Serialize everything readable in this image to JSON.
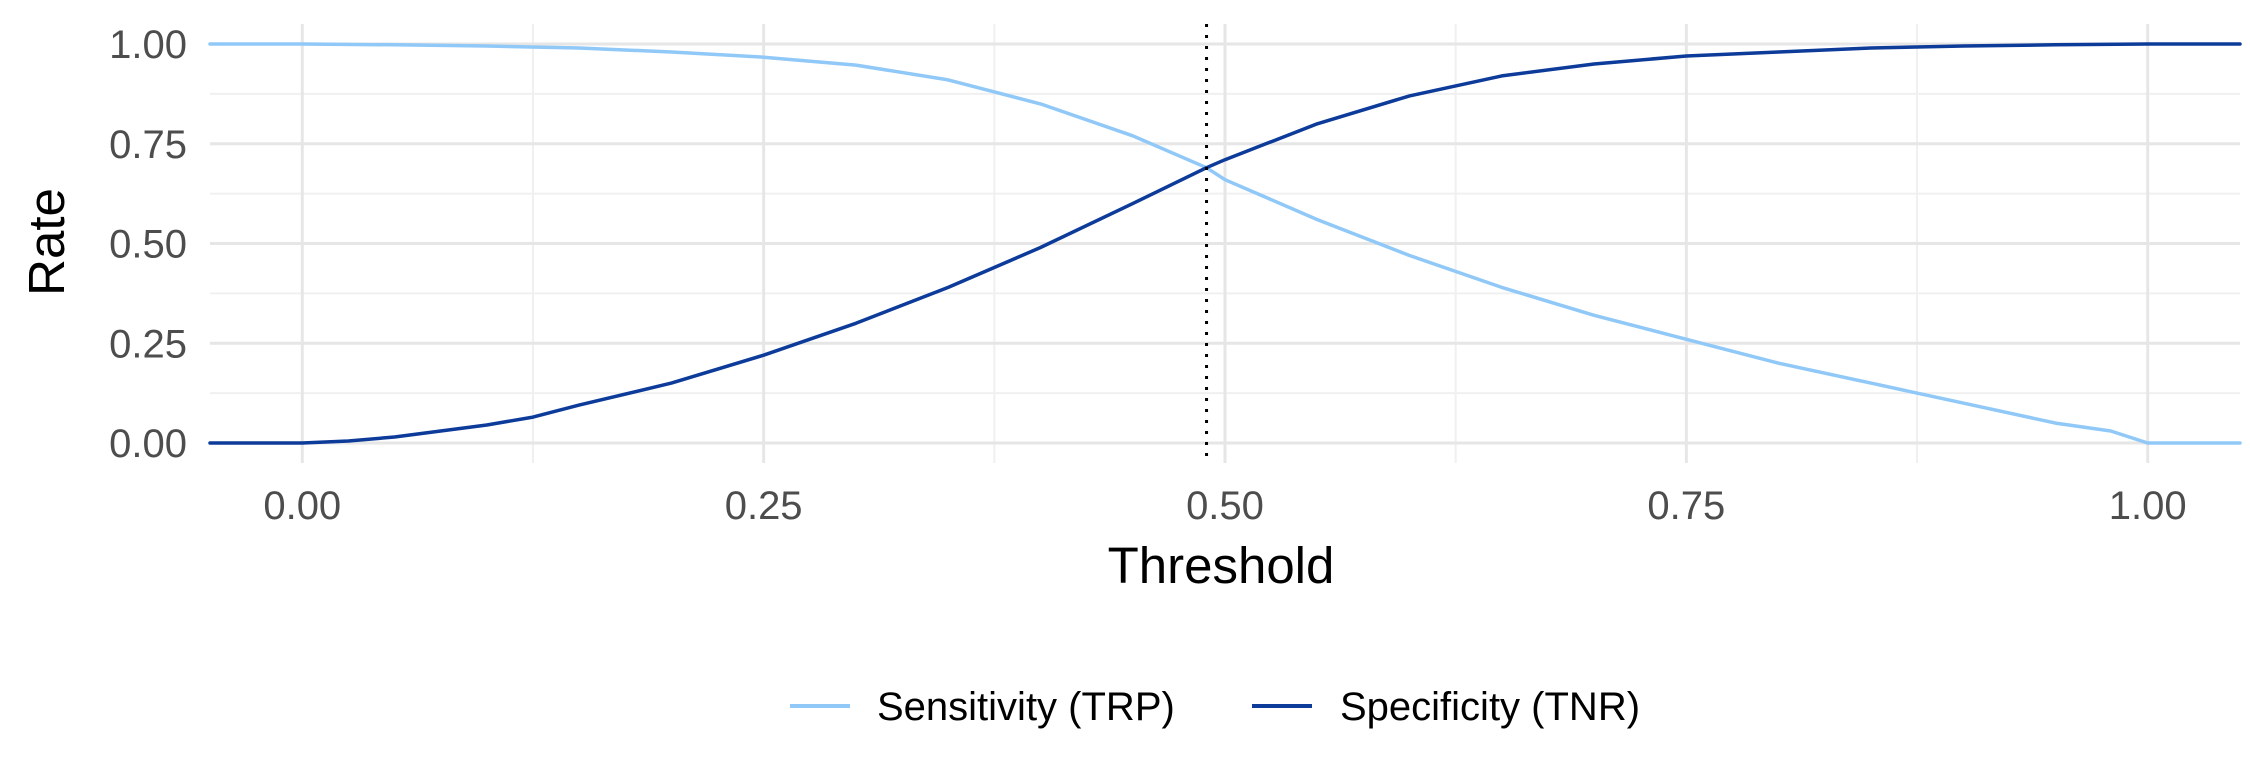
{
  "chart_data": {
    "type": "line",
    "xlabel": "Threshold",
    "ylabel": "Rate",
    "xlim": [
      -0.05,
      1.05
    ],
    "ylim": [
      0,
      1
    ],
    "x_ticks": [
      "0.00",
      "0.25",
      "0.50",
      "0.75",
      "1.00"
    ],
    "y_ticks": [
      "0.00",
      "0.25",
      "0.50",
      "0.75",
      "1.00"
    ],
    "grid": true,
    "legend_position": "bottom",
    "vline": {
      "x": 0.49,
      "style": "dotted"
    },
    "series": [
      {
        "name": "Sensitivity (TRP)",
        "color": "#90c8f8",
        "x": [
          -0.05,
          0.0,
          0.05,
          0.1,
          0.15,
          0.2,
          0.25,
          0.3,
          0.35,
          0.4,
          0.45,
          0.49,
          0.5,
          0.55,
          0.6,
          0.65,
          0.7,
          0.75,
          0.8,
          0.85,
          0.9,
          0.95,
          0.98,
          1.0,
          1.05
        ],
        "values": [
          1.0,
          1.0,
          0.998,
          0.995,
          0.99,
          0.98,
          0.967,
          0.947,
          0.91,
          0.85,
          0.77,
          0.69,
          0.66,
          0.56,
          0.47,
          0.39,
          0.32,
          0.26,
          0.2,
          0.15,
          0.1,
          0.05,
          0.03,
          0.0,
          0.0
        ]
      },
      {
        "name": "Specificity (TNR)",
        "color": "#0d3b9a",
        "x": [
          -0.05,
          0.0,
          0.025,
          0.05,
          0.075,
          0.1,
          0.125,
          0.15,
          0.2,
          0.25,
          0.3,
          0.35,
          0.4,
          0.45,
          0.49,
          0.5,
          0.55,
          0.6,
          0.65,
          0.7,
          0.75,
          0.8,
          0.85,
          0.9,
          0.95,
          1.0,
          1.05
        ],
        "values": [
          0.0,
          0.0,
          0.005,
          0.015,
          0.03,
          0.045,
          0.065,
          0.095,
          0.15,
          0.22,
          0.3,
          0.39,
          0.49,
          0.6,
          0.69,
          0.71,
          0.8,
          0.87,
          0.92,
          0.95,
          0.97,
          0.98,
          0.99,
          0.995,
          0.998,
          1.0,
          1.0
        ]
      }
    ]
  }
}
